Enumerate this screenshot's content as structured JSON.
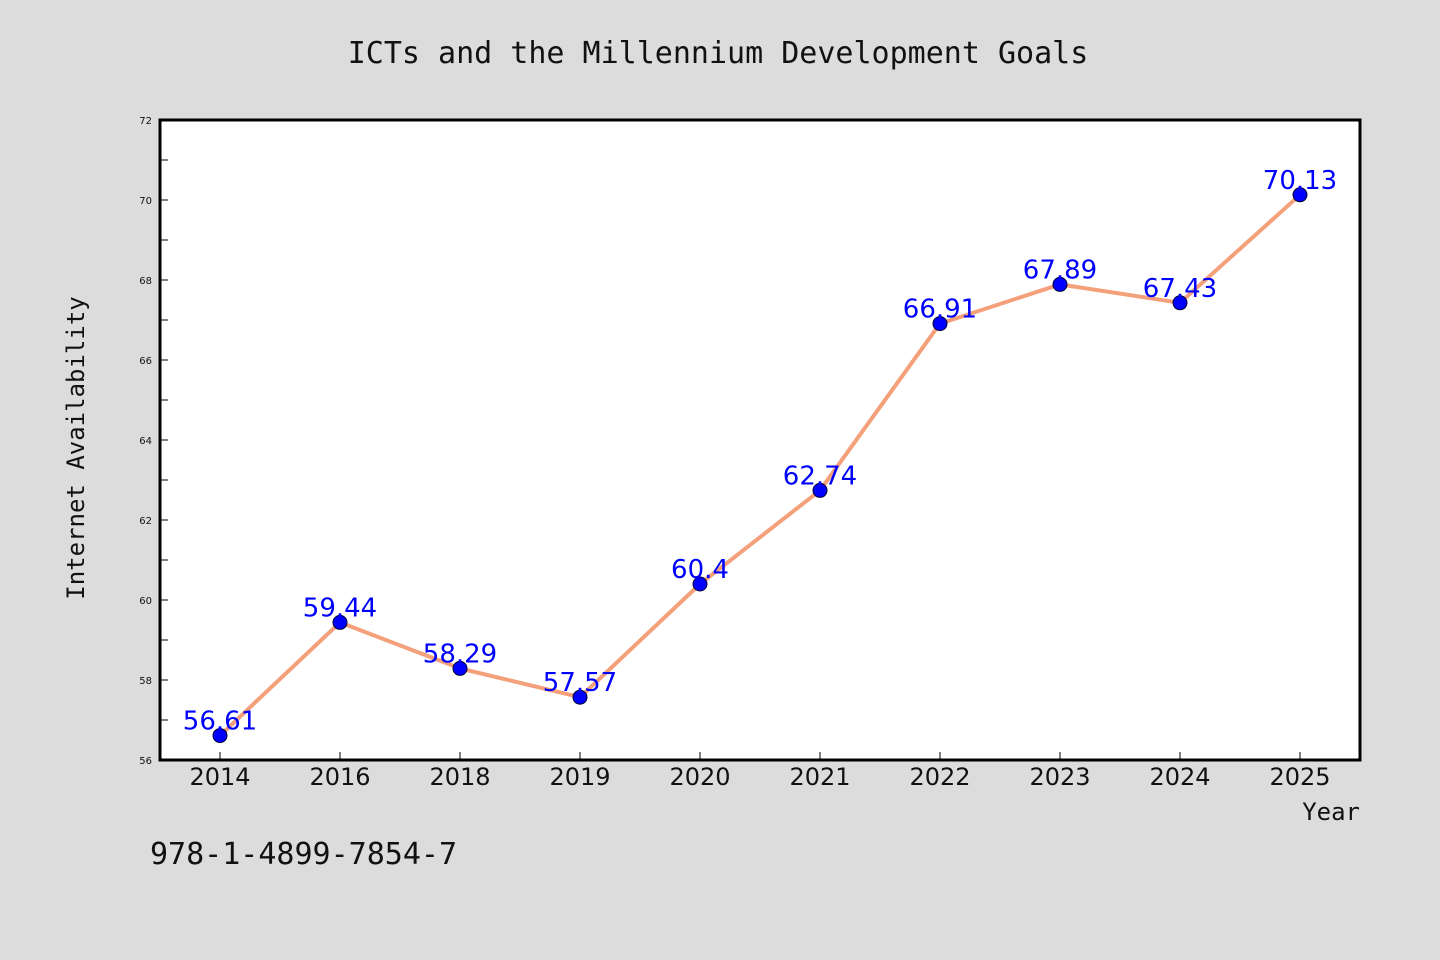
{
  "chart_data": {
    "type": "line",
    "title": "ICTs and the Millennium Development Goals",
    "xlabel": "Year",
    "ylabel": "Internet Availability",
    "categories": [
      "2014",
      "2016",
      "2018",
      "2019",
      "2020",
      "2021",
      "2022",
      "2023",
      "2024",
      "2025"
    ],
    "series": [
      {
        "values": [
          56.61,
          59.44,
          58.29,
          57.57,
          60.4,
          62.74,
          66.91,
          67.89,
          67.43,
          70.13
        ],
        "labels": [
          "56.61",
          "59.44",
          "58.29",
          "57.57",
          "60.4",
          "62.74",
          "66.91",
          "67.89",
          "67.43",
          "70.13"
        ],
        "line_color": "#f4a07a",
        "marker_color": "#0000ff"
      }
    ],
    "ylim": [
      56,
      72
    ],
    "yticks": [
      "56",
      "58",
      "60",
      "62",
      "64",
      "66",
      "68",
      "70",
      "72"
    ],
    "grid": false,
    "legend": "none"
  },
  "footer": {
    "isbn": "978-1-4899-7854-7"
  },
  "colors": {
    "background": "#dcdcdc",
    "plot_background": "#ffffff",
    "axis": "#000000"
  }
}
